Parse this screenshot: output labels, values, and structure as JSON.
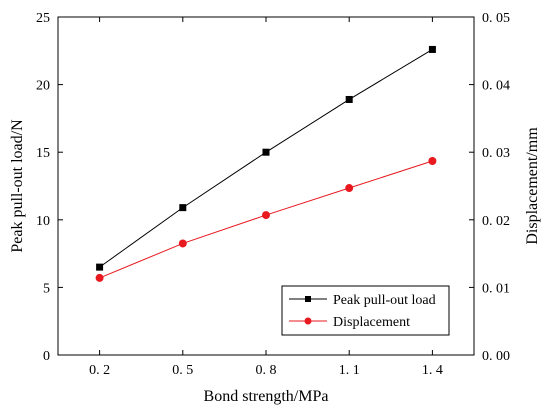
{
  "chart_data": {
    "type": "line",
    "x": [
      0.2,
      0.5,
      0.8,
      1.1,
      1.4
    ],
    "x_tick_labels": [
      "0. 2",
      "0. 5",
      "0. 8",
      "1. 1",
      "1. 4"
    ],
    "xlabel": "Bond strength/MPa",
    "ylabel_left": "Peak pull-out load/N",
    "ylabel_right": "Displacement/mm",
    "ylim_left": [
      0,
      25
    ],
    "ylim_right": [
      0,
      0.05
    ],
    "y_ticks_left": [
      "0",
      "5",
      "10",
      "15",
      "20",
      "25"
    ],
    "y_ticks_right": [
      "0. 00",
      "0. 01",
      "0. 02",
      "0. 03",
      "0. 04",
      "0. 05"
    ],
    "series": [
      {
        "name": "Peak pull-out load",
        "axis": "left",
        "marker": "square",
        "color": "#000000",
        "values": [
          6.5,
          10.9,
          15.0,
          18.9,
          22.6
        ]
      },
      {
        "name": "Displacement",
        "axis": "right",
        "marker": "circle",
        "color": "#e8191f",
        "values": [
          0.0114,
          0.0165,
          0.0207,
          0.0247,
          0.0287
        ]
      }
    ],
    "legend_position": "bottom-right",
    "grid": false
  }
}
